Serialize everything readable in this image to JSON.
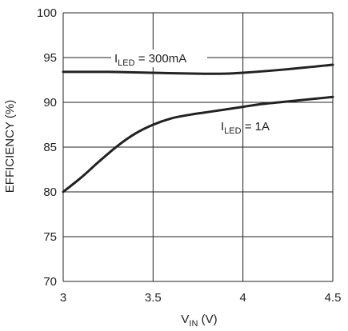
{
  "chart_data": {
    "type": "line",
    "xlabel": {
      "main": "V",
      "sub": "IN",
      "unit": " (V)"
    },
    "ylabel": "EFFICIENCY (%)",
    "xlim": [
      3,
      4.5
    ],
    "ylim": [
      70,
      100
    ],
    "xticks": [
      "3",
      "3.5",
      "4",
      "4.5"
    ],
    "yticks": [
      "70",
      "75",
      "80",
      "85",
      "90",
      "95",
      "100"
    ],
    "grid": true,
    "series": [
      {
        "label_main": "I",
        "label_sub": "LED",
        "label_value": " = 300mA",
        "x": [
          3.0,
          3.25,
          3.5,
          3.75,
          3.9,
          4.0,
          4.25,
          4.5
        ],
        "y": [
          93.4,
          93.4,
          93.3,
          93.2,
          93.2,
          93.3,
          93.7,
          94.2
        ]
      },
      {
        "label_main": "I",
        "label_sub": "LED",
        "label_value": " = 1A",
        "x": [
          3.0,
          3.1,
          3.2,
          3.3,
          3.4,
          3.5,
          3.6,
          3.7,
          3.8,
          3.9,
          4.0,
          4.1,
          4.2,
          4.3,
          4.4,
          4.5
        ],
        "y": [
          80.0,
          81.6,
          83.4,
          85.1,
          86.5,
          87.5,
          88.2,
          88.6,
          88.9,
          89.2,
          89.5,
          89.8,
          90.0,
          90.2,
          90.4,
          90.6
        ]
      }
    ]
  }
}
